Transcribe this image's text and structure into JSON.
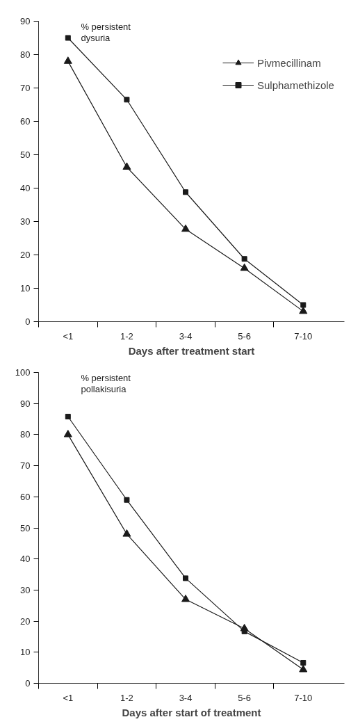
{
  "chart_data": [
    {
      "type": "line",
      "ylabel": "% persistent\ndysuria",
      "xlabel": "Days after treatment start",
      "categories": [
        "<1",
        "1-2",
        "3-4",
        "5-6",
        "7-10"
      ],
      "series": [
        {
          "name": "Pivmecillinam",
          "color": "#1a1a1a",
          "marker": "triangle",
          "values": [
            78,
            46.3,
            27.7,
            16,
            3.1
          ]
        },
        {
          "name": "Sulphamethizole",
          "color": "#1a1a1a",
          "marker": "square",
          "values": [
            85,
            66.5,
            38.8,
            18.8,
            5
          ]
        }
      ],
      "ylim": [
        0,
        90
      ],
      "yticks": [
        0,
        10,
        20,
        30,
        40,
        50,
        60,
        70,
        80,
        90
      ],
      "grid": false,
      "legend": "top right",
      "line_style": "solid"
    },
    {
      "type": "line",
      "ylabel": "% persistent\npollakisuria",
      "xlabel": "Days after start of treatment",
      "categories": [
        "<1",
        "1-2",
        "3-4",
        "5-6",
        "7-10"
      ],
      "series": [
        {
          "color": "#1a1a1a",
          "marker": "triangle",
          "values": [
            80,
            48,
            27,
            17.6,
            4.4
          ]
        },
        {
          "color": "#1a1a1a",
          "marker": "square",
          "values": [
            85.8,
            59,
            33.8,
            16.7,
            6.6
          ]
        }
      ],
      "ylim": [
        0,
        100
      ],
      "yticks": [
        0,
        10,
        20,
        30,
        40,
        50,
        60,
        70,
        80,
        90,
        100
      ],
      "grid": false,
      "legend": false,
      "line_style": "solid"
    }
  ]
}
